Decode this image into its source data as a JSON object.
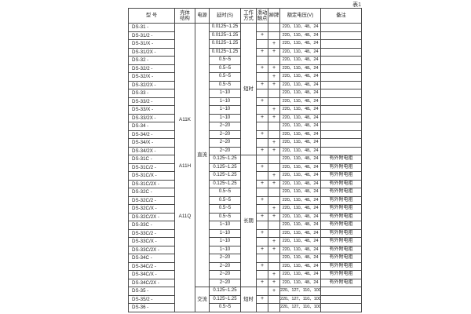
{
  "table_tag": "表1",
  "columns": {
    "model": "型  号",
    "shell": "壳体\n结构",
    "power": "电源",
    "delay": "延时(S)",
    "mode": "工作\n方式",
    "slide": "滑动\n触点",
    "flag": "掉牌",
    "voltage": "额定电压(V)",
    "remark": "备注"
  },
  "merged": {
    "shell_labels": [
      "A11K",
      "A11H",
      "A11Q"
    ],
    "power_dc": "直流",
    "power_ac": "交流",
    "mode_first": "短时",
    "mode_second": "长期",
    "mode_third": "短时"
  },
  "rows": [
    {
      "model": "DS-31 -",
      "delay": "0.0125~1.25",
      "slide": "",
      "flag": "",
      "voltage": "220、110、48、24",
      "remark": ""
    },
    {
      "model": "DS-31/2 -",
      "delay": "0.0125~1.25",
      "slide": "+",
      "flag": "",
      "voltage": "220、110、48、24",
      "remark": ""
    },
    {
      "model": "DS-31/X -",
      "delay": "0.0125~1.25",
      "slide": "",
      "flag": "+",
      "voltage": "220、110、48、24",
      "remark": ""
    },
    {
      "model": "DS-31/2X -",
      "delay": "0.0125~1.25",
      "slide": "+",
      "flag": "+",
      "voltage": "220、110、48、24",
      "remark": ""
    },
    {
      "model": "DS-32 -",
      "delay": "0.5~5",
      "slide": "",
      "flag": "",
      "voltage": "220、110、48、24",
      "remark": ""
    },
    {
      "model": "DS-32/2 -",
      "delay": "0.5~5",
      "slide": "+",
      "flag": "+",
      "voltage": "220、110、48、24",
      "remark": ""
    },
    {
      "model": "DS-32/X -",
      "delay": "0.5~5",
      "slide": "",
      "flag": "+",
      "voltage": "220、110、48、24",
      "remark": ""
    },
    {
      "model": "DS-32/2X -",
      "delay": "0.5~5",
      "slide": "+",
      "flag": "+",
      "voltage": "220、110、48、24",
      "remark": ""
    },
    {
      "model": "DS-33 -",
      "delay": "1~10",
      "slide": "",
      "flag": "",
      "voltage": "220、110、48、24",
      "remark": ""
    },
    {
      "model": "DS-33/2 -",
      "delay": "1~10",
      "slide": "+",
      "flag": "",
      "voltage": "220、110、48、24",
      "remark": ""
    },
    {
      "model": "DS-33/X -",
      "delay": "1~10",
      "slide": "",
      "flag": "+",
      "voltage": "220、110、48、24",
      "remark": ""
    },
    {
      "model": "DS-33/2X -",
      "delay": "1~10",
      "slide": "+",
      "flag": "+",
      "voltage": "220、110、48、24",
      "remark": ""
    },
    {
      "model": "DS-34 -",
      "delay": "2~20",
      "slide": "",
      "flag": "",
      "voltage": "220、110、48、24",
      "remark": ""
    },
    {
      "model": "DS-34/2 -",
      "delay": "2~20",
      "slide": "+",
      "flag": "",
      "voltage": "220、110、48、24",
      "remark": ""
    },
    {
      "model": "DS-34/X -",
      "delay": "2~20",
      "slide": "",
      "flag": "+",
      "voltage": "220、110、48、24",
      "remark": ""
    },
    {
      "model": "DS-34/2X -",
      "delay": "2~20",
      "slide": "+",
      "flag": "+",
      "voltage": "220、110、48、24",
      "remark": ""
    },
    {
      "model": "DS-31C -",
      "delay": "0.125~1.25",
      "slide": "",
      "flag": "",
      "voltage": "220、110、48、24",
      "remark": "有外附电阻"
    },
    {
      "model": "DS-31C/2 -",
      "delay": "0.125~1.25",
      "slide": "+",
      "flag": "",
      "voltage": "220、110、48、24",
      "remark": "有外附电阻"
    },
    {
      "model": "DS-31C/X -",
      "delay": "0.125~1.25",
      "slide": "",
      "flag": "+",
      "voltage": "220、110、48、24",
      "remark": "有外附电阻"
    },
    {
      "model": "DS-31C/2X -",
      "delay": "0.125~1.25",
      "slide": "+",
      "flag": "+",
      "voltage": "220、110、48、24",
      "remark": "有外附电阻"
    },
    {
      "model": "DS-32C -",
      "delay": "0.5~5",
      "slide": "",
      "flag": "",
      "voltage": "220、110、48、24",
      "remark": "有外附电阻"
    },
    {
      "model": "DS-32C/2 -",
      "delay": "0.5~5",
      "slide": "+",
      "flag": "",
      "voltage": "220、110、48、24",
      "remark": "有外附电阻"
    },
    {
      "model": "DS-32C/X -",
      "delay": "0.5~5",
      "slide": "",
      "flag": "+",
      "voltage": "220、110、48、24",
      "remark": "有外附电阻"
    },
    {
      "model": "DS-32C/2X -",
      "delay": "0.5~5",
      "slide": "+",
      "flag": "+",
      "voltage": "220、110、48、24",
      "remark": "有外附电阻"
    },
    {
      "model": "DS-33C -",
      "delay": "1~10",
      "slide": "",
      "flag": "",
      "voltage": "220、110、48、24",
      "remark": "有外附电阻"
    },
    {
      "model": "DS-33C/2 -",
      "delay": "1~10",
      "slide": "+",
      "flag": "",
      "voltage": "220、110、48、24",
      "remark": "有外附电阻"
    },
    {
      "model": "DS-33C/X -",
      "delay": "1~10",
      "slide": "",
      "flag": "+",
      "voltage": "220、110、48、24",
      "remark": "有外附电阻"
    },
    {
      "model": "DS-33C/2X -",
      "delay": "1~10",
      "slide": "+",
      "flag": "+",
      "voltage": "220、110、48、24",
      "remark": "有外附电阻"
    },
    {
      "model": "DS-34C -",
      "delay": "2~20",
      "slide": "",
      "flag": "",
      "voltage": "220、110、48、24",
      "remark": "有外附电阻"
    },
    {
      "model": "DS-34C/2 -",
      "delay": "2~20",
      "slide": "+",
      "flag": "",
      "voltage": "220、110、48、24",
      "remark": "有外附电阻"
    },
    {
      "model": "DS-34C/X -",
      "delay": "2~20",
      "slide": "",
      "flag": "+",
      "voltage": "220、110、48、24",
      "remark": "有外附电阻"
    },
    {
      "model": "DS-34C/2X -",
      "delay": "2~20",
      "slide": "+",
      "flag": "+",
      "voltage": "220、110、48、24",
      "remark": "有外附电阻"
    },
    {
      "model": "DS-35 -",
      "delay": "0.125~1.25",
      "slide": "",
      "flag": "+",
      "voltage": "220、127、110、100",
      "remark": ""
    },
    {
      "model": "DS-35/2 -",
      "delay": "0.125~1.25",
      "slide": "+",
      "flag": "",
      "voltage": "220、127、110、100",
      "remark": ""
    },
    {
      "model": "DS-36 -",
      "delay": "0.5~5",
      "slide": "",
      "flag": "",
      "voltage": "220、127、110、100",
      "remark": ""
    }
  ]
}
